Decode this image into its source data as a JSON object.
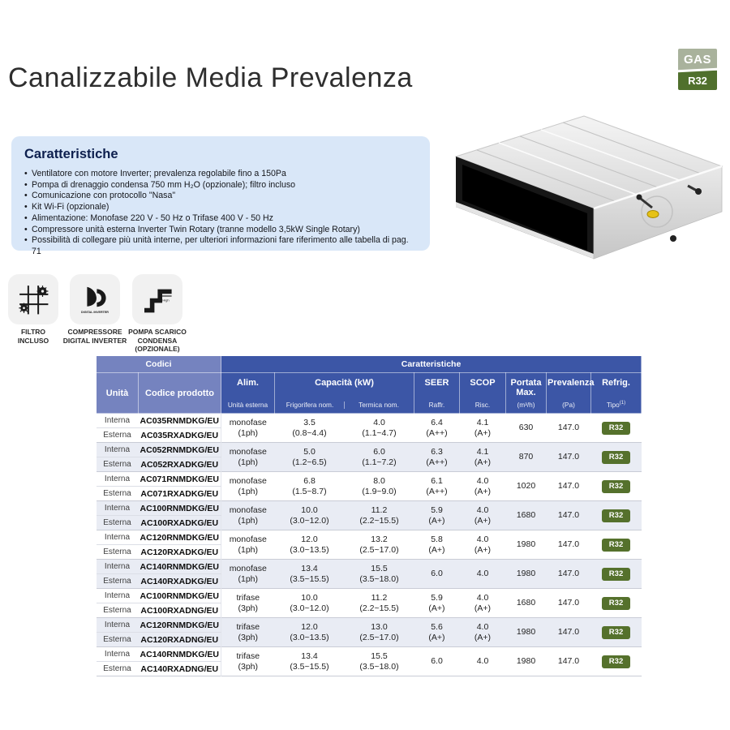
{
  "page": {
    "title": "Canalizzabile Media Prevalenza",
    "gas_badge": {
      "top": "GAS",
      "bottom": "R32"
    }
  },
  "colors": {
    "header_dark_blue": "#3c56a6",
    "header_light_blue": "#7583bf",
    "row_shade": "#e9ecf4",
    "feature_box": "#d9e7f8",
    "r32_badge": "#55712c",
    "gas_badge_top": "#a9b29c",
    "gas_badge_bottom": "#50702d",
    "navy_text": "#0d1f4e"
  },
  "features": {
    "title": "Caratteristiche",
    "bullets": [
      "Ventilatore con motore Inverter; prevalenza regolabile fino a 150Pa",
      "Pompa di drenaggio condensa 750 mm H₂O (opzionale); filtro incluso",
      "Comunicazione con protocollo \"Nasa\"",
      "Kit Wi-Fi (opzionale)",
      "Alimentazione: Monofase 220 V - 50 Hz o Trifase 400 V - 50 Hz",
      "Compressore unità esterna Inverter Twin Rotary (tranne modello 3,5kW Single Rotary)",
      "Possibilità di collegare più unità interne, per ulteriori informazioni fare riferimento alle tabella di pag. 71"
    ]
  },
  "icons": [
    {
      "name": "filter-included-icon",
      "label": "FILTRO\nINCLUSO"
    },
    {
      "name": "digital-inverter-icon",
      "label": "COMPRESSORE\nDIGITAL INVERTER",
      "inner_text": "DIGITAL INVERTER"
    },
    {
      "name": "drain-pump-icon",
      "label": "POMPA SCARICO\nCONDENSA\n(OPZIONALE)",
      "inner_text": "High"
    }
  ],
  "table": {
    "group_headers": {
      "codici": "Codici",
      "caratteristiche": "Caratteristiche"
    },
    "columns": {
      "unita": "Unità",
      "codice": "Codice prodotto",
      "alim": {
        "main": "Alim.",
        "sub": "Unità esterna"
      },
      "capacita": {
        "main": "Capacità (kW)",
        "sub_frig": "Frigorifera nom.",
        "sub_term": "Termica nom."
      },
      "seer": {
        "main": "SEER",
        "sub": "Raffr."
      },
      "scop": {
        "main": "SCOP",
        "sub": "Risc."
      },
      "portata": {
        "main": "Portata Max.",
        "sub": "(m³/h)"
      },
      "prevalenza": {
        "main": "Prevalenza",
        "sub": "(Pa)"
      },
      "refrig": {
        "main": "Refrig.",
        "sub": "Tipo",
        "sub_sup": "(1)"
      }
    },
    "row_labels": {
      "interna": "Interna",
      "esterna": "Esterna"
    },
    "rows": [
      {
        "code_interna": "AC035RNMDKG/EU",
        "code_esterna": "AC035RXADKG/EU",
        "alim": "monofase\n(1ph)",
        "frig": "3.5\n(0.8~4.4)",
        "term": "4.0\n(1.1~4.7)",
        "seer": "6.4\n(A++)",
        "scop": "4.1\n(A+)",
        "portata": "630",
        "prevalenza": "147.0",
        "refrig": "R32"
      },
      {
        "code_interna": "AC052RNMDKG/EU",
        "code_esterna": "AC052RXADKG/EU",
        "alim": "monofase\n(1ph)",
        "frig": "5.0\n(1.2~6.5)",
        "term": "6.0\n(1.1~7.2)",
        "seer": "6.3\n(A++)",
        "scop": "4.1\n(A+)",
        "portata": "870",
        "prevalenza": "147.0",
        "refrig": "R32"
      },
      {
        "code_interna": "AC071RNMDKG/EU",
        "code_esterna": "AC071RXADKG/EU",
        "alim": "monofase\n(1ph)",
        "frig": "6.8\n(1.5~8.7)",
        "term": "8.0\n(1.9~9.0)",
        "seer": "6.1\n(A++)",
        "scop": "4.0\n(A+)",
        "portata": "1020",
        "prevalenza": "147.0",
        "refrig": "R32"
      },
      {
        "code_interna": "AC100RNMDKG/EU",
        "code_esterna": "AC100RXADKG/EU",
        "alim": "monofase\n(1ph)",
        "frig": "10.0\n(3.0~12.0)",
        "term": "11.2\n(2.2~15.5)",
        "seer": "5.9\n(A+)",
        "scop": "4.0\n(A+)",
        "portata": "1680",
        "prevalenza": "147.0",
        "refrig": "R32"
      },
      {
        "code_interna": "AC120RNMDKG/EU",
        "code_esterna": "AC120RXADKG/EU",
        "alim": "monofase\n(1ph)",
        "frig": "12.0\n(3.0~13.5)",
        "term": "13.2\n(2.5~17.0)",
        "seer": "5.8\n(A+)",
        "scop": "4.0\n(A+)",
        "portata": "1980",
        "prevalenza": "147.0",
        "refrig": "R32"
      },
      {
        "code_interna": "AC140RNMDKG/EU",
        "code_esterna": "AC140RXADKG/EU",
        "alim": "monofase\n(1ph)",
        "frig": "13.4\n(3.5~15.5)",
        "term": "15.5\n(3.5~18.0)",
        "seer": "6.0",
        "scop": "4.0",
        "portata": "1980",
        "prevalenza": "147.0",
        "refrig": "R32"
      },
      {
        "code_interna": "AC100RNMDKG/EU",
        "code_esterna": "AC100RXADNG/EU",
        "alim": "trifase\n(3ph)",
        "frig": "10.0\n(3.0~12.0)",
        "term": "11.2\n(2.2~15.5)",
        "seer": "5.9\n(A+)",
        "scop": "4.0\n(A+)",
        "portata": "1680",
        "prevalenza": "147.0",
        "refrig": "R32"
      },
      {
        "code_interna": "AC120RNMDKG/EU",
        "code_esterna": "AC120RXADNG/EU",
        "alim": "trifase\n(3ph)",
        "frig": "12.0\n(3.0~13.5)",
        "term": "13.0\n(2.5~17.0)",
        "seer": "5.6\n(A+)",
        "scop": "4.0\n(A+)",
        "portata": "1980",
        "prevalenza": "147.0",
        "refrig": "R32"
      },
      {
        "code_interna": "AC140RNMDKG/EU",
        "code_esterna": "AC140RXADNG/EU",
        "alim": "trifase\n(3ph)",
        "frig": "13.4\n(3.5~15.5)",
        "term": "15.5\n(3.5~18.0)",
        "seer": "6.0",
        "scop": "4.0",
        "portata": "1980",
        "prevalenza": "147.0",
        "refrig": "R32"
      }
    ]
  }
}
